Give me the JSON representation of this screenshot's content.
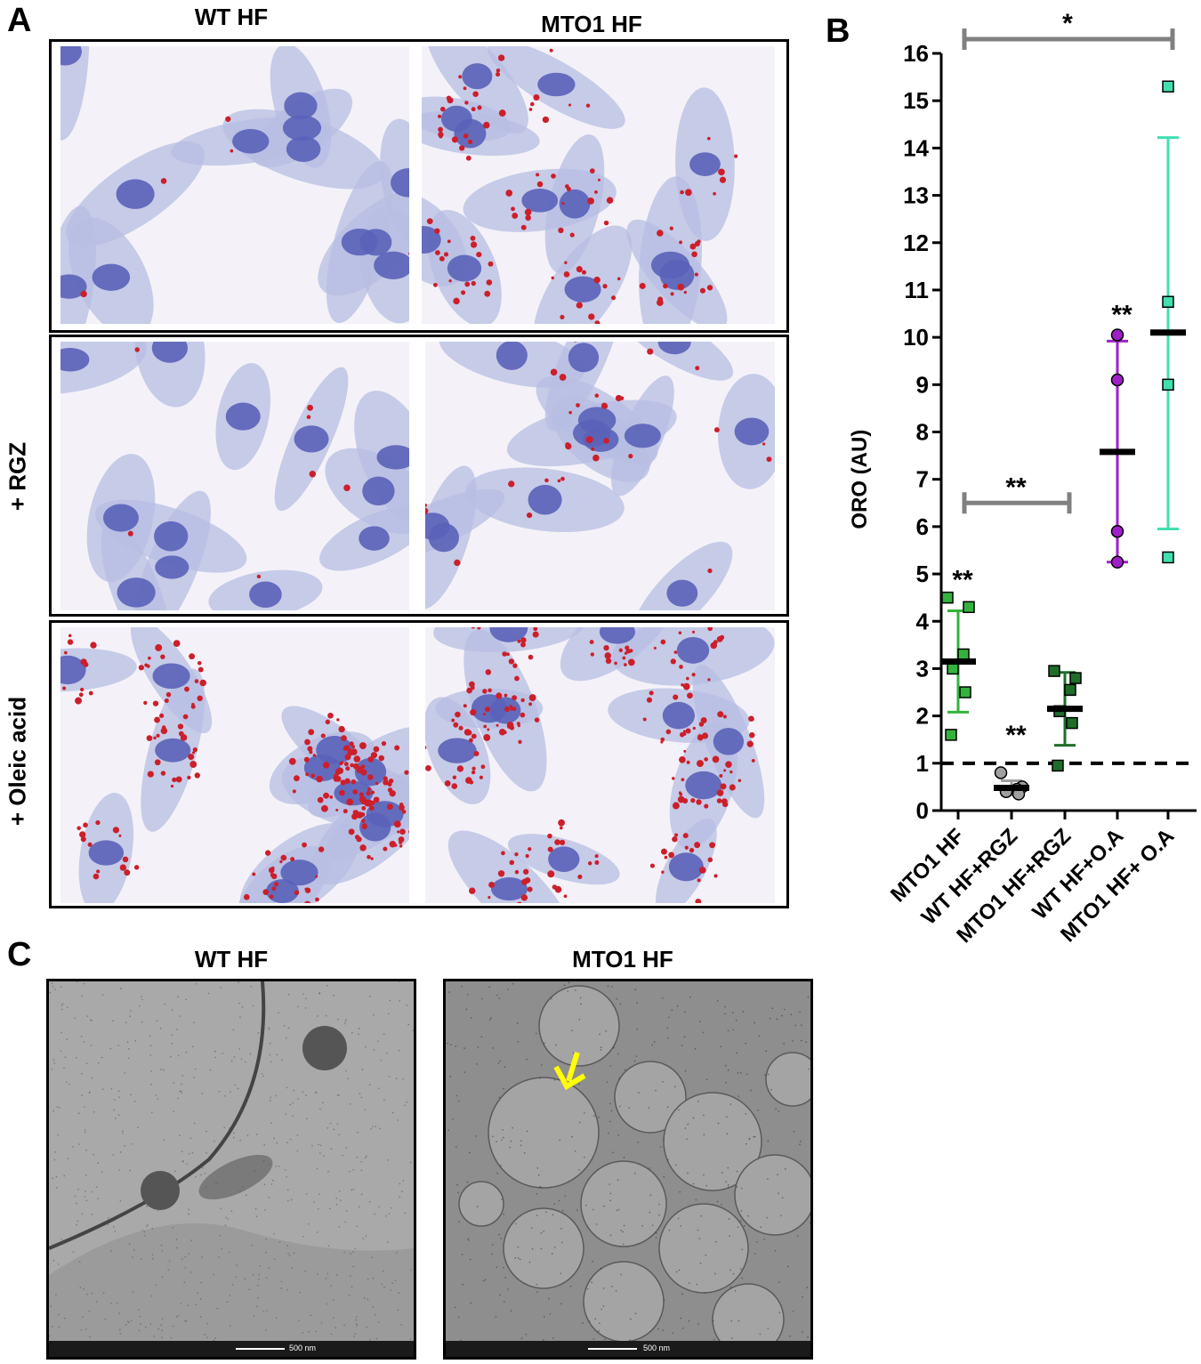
{
  "figure": {
    "panel_a": {
      "letter": "A",
      "col_titles": [
        "WT HF",
        "MTO1 HF"
      ],
      "row_labels": [
        "+ RGZ",
        "+ Oleic acid"
      ],
      "image_descriptions": []
    },
    "panel_b": {
      "letter": "B"
    },
    "panel_c": {
      "letter": "C",
      "titles": [
        "WT HF",
        "MTO1 HF"
      ],
      "scale_labels": [
        "500 nm",
        "500 nm"
      ],
      "arrow_color": "#FFFF00"
    }
  },
  "chart_data": {
    "type": "scatter",
    "title": "",
    "xlabel": "",
    "ylabel": "ORO (AU)",
    "ylim": [
      0,
      16
    ],
    "yticks": [
      0,
      1,
      2,
      3,
      4,
      5,
      6,
      7,
      8,
      9,
      10,
      11,
      12,
      13,
      14,
      15,
      16
    ],
    "categories": [
      "MTO1 HF",
      "WT HF+RGZ",
      "MTO1 HF+RGZ",
      "WT HF+O.A",
      "MTO1 HF+ O.A"
    ],
    "reference_line": 1,
    "series": [
      {
        "category": "MTO1 HF",
        "color": "#33B33D",
        "marker": "square",
        "points": [
          4.5,
          4.3,
          3.3,
          3.0,
          2.5,
          1.6
        ],
        "mean": 3.15,
        "err_low": 2.08,
        "err_high": 4.22,
        "annotation": "**"
      },
      {
        "category": "WT HF+RGZ",
        "color": "#A0A0A0",
        "marker": "circle",
        "points": [
          0.8,
          0.5,
          0.45,
          0.4,
          0.35
        ],
        "mean": 0.48,
        "err_low": 0.33,
        "err_high": 0.63,
        "annotation": "**"
      },
      {
        "category": "MTO1 HF+RGZ",
        "color": "#1E6E2A",
        "marker": "square",
        "points": [
          2.95,
          2.8,
          2.55,
          2.1,
          1.85,
          0.95
        ],
        "mean": 2.15,
        "err_low": 1.38,
        "err_high": 2.92,
        "annotation": ""
      },
      {
        "category": "WT HF+O.A",
        "color": "#A020C8",
        "marker": "circle",
        "points": [
          10.05,
          9.1,
          5.9,
          5.25
        ],
        "mean": 7.58,
        "err_low": 5.25,
        "err_high": 9.92,
        "annotation": "**"
      },
      {
        "category": "MTO1 HF+ O.A",
        "color": "#40E0B0",
        "marker": "square",
        "points": [
          15.3,
          10.75,
          9.0,
          5.35
        ],
        "mean": 10.1,
        "err_low": 5.95,
        "err_high": 14.22,
        "annotation": ""
      }
    ],
    "brackets": [
      {
        "from": "MTO1 HF",
        "to": "MTO1 HF+RGZ",
        "y": 6.5,
        "label": "**"
      },
      {
        "from": "MTO1 HF",
        "to": "MTO1 HF+ O.A",
        "y": 16.3,
        "label": "*"
      }
    ],
    "grid": false,
    "legend": "none"
  }
}
